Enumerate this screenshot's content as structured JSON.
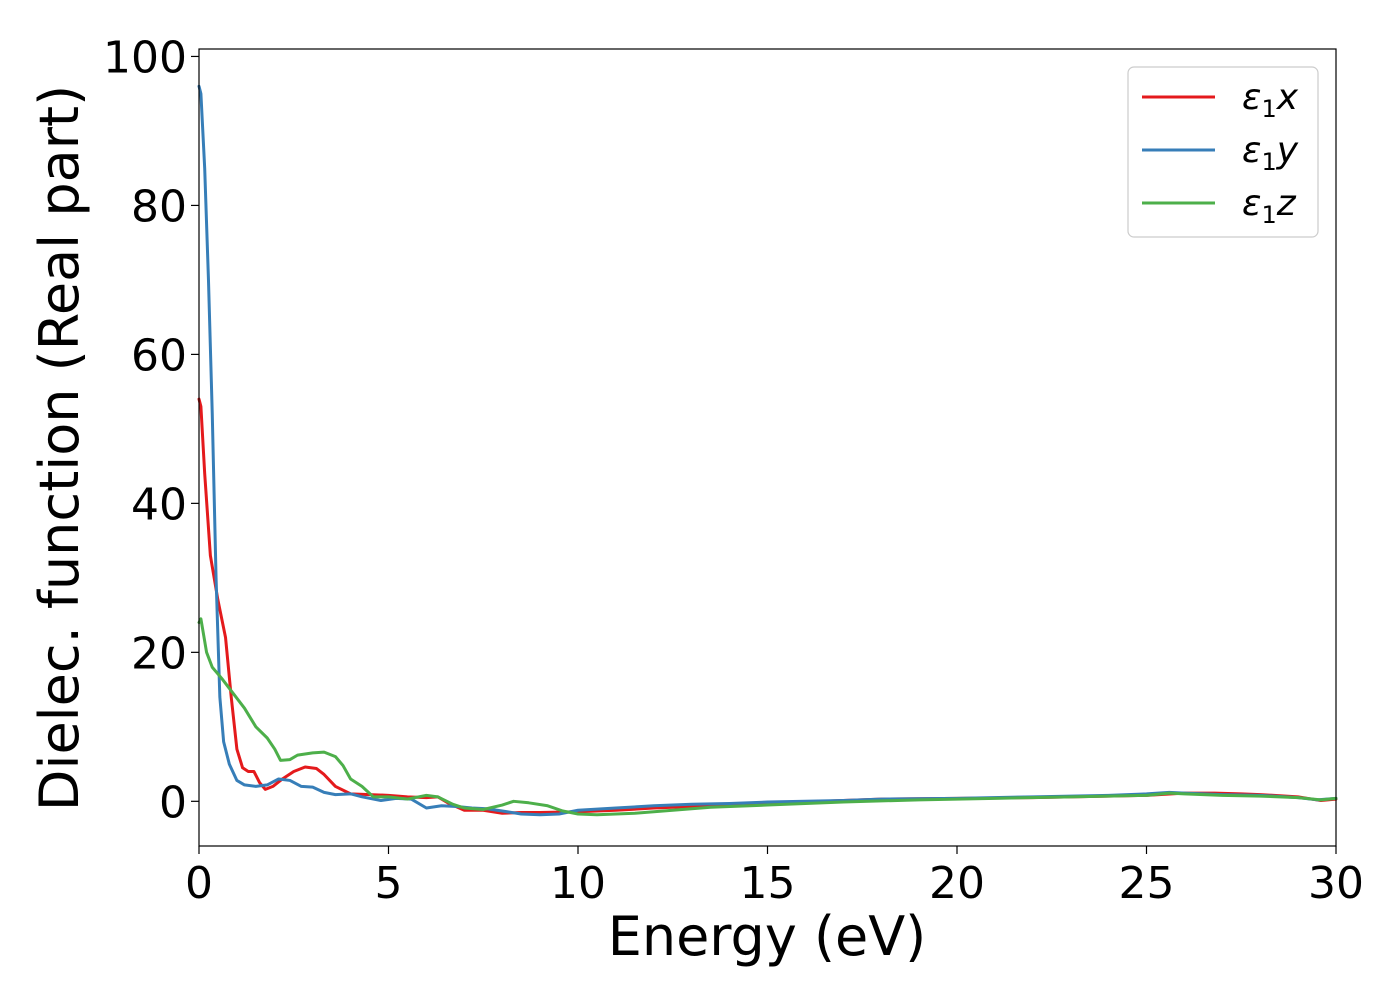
{
  "chart_data": {
    "type": "line",
    "xlabel": "Energy (eV)",
    "ylabel": "Dielec. function (Real part)",
    "xlim": [
      0,
      30
    ],
    "ylim": [
      -6,
      101
    ],
    "x_ticks": [
      0,
      5,
      10,
      15,
      20,
      25,
      30
    ],
    "y_ticks": [
      0,
      20,
      40,
      60,
      80,
      100
    ],
    "grid": false,
    "legend_position": "top-right",
    "series": [
      {
        "name": "ε1x",
        "name_base": "ε",
        "name_sub": "1",
        "name_tail": "x",
        "color": "#e41a1c",
        "points": [
          [
            0,
            54
          ],
          [
            0.05,
            53
          ],
          [
            0.15,
            44
          ],
          [
            0.3,
            33
          ],
          [
            0.5,
            27
          ],
          [
            0.7,
            22
          ],
          [
            0.85,
            14
          ],
          [
            1.0,
            7
          ],
          [
            1.15,
            4.5
          ],
          [
            1.3,
            4
          ],
          [
            1.45,
            4
          ],
          [
            1.6,
            2.5
          ],
          [
            1.75,
            1.6
          ],
          [
            1.95,
            2
          ],
          [
            2.2,
            3
          ],
          [
            2.5,
            4
          ],
          [
            2.8,
            4.6
          ],
          [
            3.1,
            4.4
          ],
          [
            3.3,
            3.6
          ],
          [
            3.6,
            2
          ],
          [
            4.0,
            1
          ],
          [
            4.5,
            0.9
          ],
          [
            5.0,
            0.8
          ],
          [
            5.5,
            0.6
          ],
          [
            6.0,
            0.5
          ],
          [
            6.3,
            0.6
          ],
          [
            6.6,
            -0.3
          ],
          [
            7.0,
            -1.2
          ],
          [
            7.5,
            -1.2
          ],
          [
            8.0,
            -1.6
          ],
          [
            8.5,
            -1.5
          ],
          [
            9.0,
            -1.5
          ],
          [
            10,
            -1.4
          ],
          [
            11,
            -1.2
          ],
          [
            12,
            -0.9
          ],
          [
            13,
            -0.7
          ],
          [
            14,
            -0.5
          ],
          [
            15,
            -0.3
          ],
          [
            16,
            -0.1
          ],
          [
            17,
            0.1
          ],
          [
            18,
            0.3
          ],
          [
            20,
            0.4
          ],
          [
            22,
            0.5
          ],
          [
            24,
            0.7
          ],
          [
            25,
            0.8
          ],
          [
            26,
            1.1
          ],
          [
            26.8,
            1.1
          ],
          [
            27.5,
            1
          ],
          [
            28,
            0.9
          ],
          [
            29,
            0.6
          ],
          [
            29.6,
            0.1
          ],
          [
            30,
            0.3
          ]
        ]
      },
      {
        "name": "ε1y",
        "name_base": "ε",
        "name_sub": "1",
        "name_tail": "y",
        "color": "#377eb8",
        "points": [
          [
            0,
            96
          ],
          [
            0.05,
            95
          ],
          [
            0.15,
            85
          ],
          [
            0.25,
            70
          ],
          [
            0.35,
            52
          ],
          [
            0.45,
            30
          ],
          [
            0.55,
            14
          ],
          [
            0.65,
            8
          ],
          [
            0.8,
            5
          ],
          [
            1.0,
            2.8
          ],
          [
            1.2,
            2.2
          ],
          [
            1.5,
            2
          ],
          [
            1.8,
            2.2
          ],
          [
            2.1,
            3
          ],
          [
            2.4,
            2.8
          ],
          [
            2.7,
            2
          ],
          [
            3.0,
            1.9
          ],
          [
            3.3,
            1.2
          ],
          [
            3.6,
            0.9
          ],
          [
            4.0,
            1
          ],
          [
            4.3,
            0.6
          ],
          [
            4.8,
            0.1
          ],
          [
            5.2,
            0.4
          ],
          [
            5.6,
            0.3
          ],
          [
            6.0,
            -0.9
          ],
          [
            6.4,
            -0.6
          ],
          [
            6.8,
            -0.7
          ],
          [
            7.2,
            -0.9
          ],
          [
            7.6,
            -1
          ],
          [
            8.0,
            -1.3
          ],
          [
            8.5,
            -1.7
          ],
          [
            9.0,
            -1.8
          ],
          [
            9.5,
            -1.7
          ],
          [
            10,
            -1.2
          ],
          [
            11,
            -0.9
          ],
          [
            12,
            -0.6
          ],
          [
            13,
            -0.4
          ],
          [
            14,
            -0.3
          ],
          [
            15,
            -0.1
          ],
          [
            17,
            0.1
          ],
          [
            18,
            0.3
          ],
          [
            20,
            0.4
          ],
          [
            22,
            0.6
          ],
          [
            24,
            0.8
          ],
          [
            25,
            1
          ],
          [
            25.6,
            1.2
          ],
          [
            26,
            1.1
          ],
          [
            27,
            0.9
          ],
          [
            28,
            0.8
          ],
          [
            29,
            0.5
          ],
          [
            29.5,
            0.2
          ],
          [
            30,
            0.4
          ]
        ]
      },
      {
        "name": "ε1z",
        "name_base": "ε",
        "name_sub": "1",
        "name_tail": "z",
        "color": "#4daf4a",
        "points": [
          [
            0,
            24
          ],
          [
            0.05,
            24.5
          ],
          [
            0.2,
            20
          ],
          [
            0.35,
            18
          ],
          [
            0.6,
            16.5
          ],
          [
            0.9,
            14.5
          ],
          [
            1.2,
            12.5
          ],
          [
            1.5,
            10
          ],
          [
            1.8,
            8.5
          ],
          [
            2.0,
            7
          ],
          [
            2.15,
            5.5
          ],
          [
            2.4,
            5.6
          ],
          [
            2.6,
            6.2
          ],
          [
            3.0,
            6.5
          ],
          [
            3.3,
            6.6
          ],
          [
            3.6,
            6
          ],
          [
            3.8,
            4.8
          ],
          [
            4.0,
            3
          ],
          [
            4.3,
            2
          ],
          [
            4.6,
            0.6
          ],
          [
            5.0,
            0.6
          ],
          [
            5.5,
            0.3
          ],
          [
            6.0,
            0.8
          ],
          [
            6.3,
            0.6
          ],
          [
            6.7,
            -0.4
          ],
          [
            7.0,
            -0.9
          ],
          [
            7.5,
            -1.1
          ],
          [
            8.0,
            -0.5
          ],
          [
            8.3,
            0
          ],
          [
            8.7,
            -0.2
          ],
          [
            9.2,
            -0.6
          ],
          [
            9.6,
            -1.3
          ],
          [
            10.0,
            -1.7
          ],
          [
            10.5,
            -1.8
          ],
          [
            11.5,
            -1.6
          ],
          [
            12.5,
            -1.2
          ],
          [
            13.5,
            -0.8
          ],
          [
            15,
            -0.5
          ],
          [
            17,
            -0.1
          ],
          [
            19,
            0.2
          ],
          [
            21,
            0.4
          ],
          [
            23,
            0.6
          ],
          [
            25,
            0.8
          ],
          [
            25.6,
            1.1
          ],
          [
            26,
            1
          ],
          [
            27,
            0.8
          ],
          [
            28,
            0.7
          ],
          [
            29,
            0.5
          ],
          [
            29.6,
            0.2
          ],
          [
            30,
            0.4
          ]
        ]
      }
    ]
  }
}
